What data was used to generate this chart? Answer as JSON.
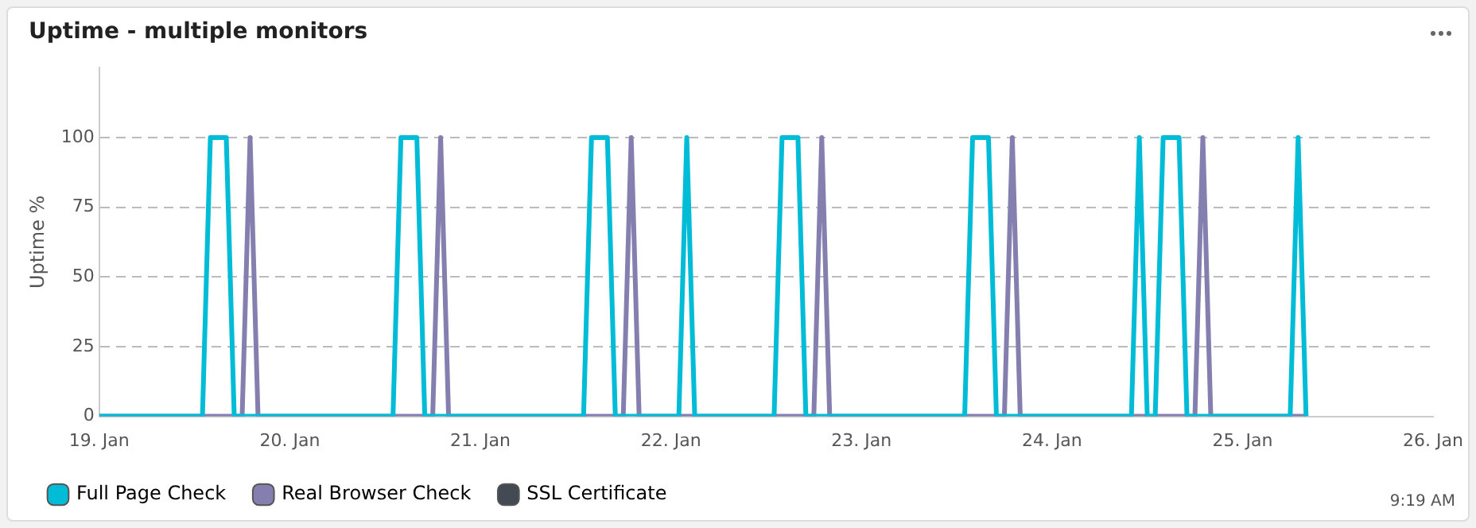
{
  "chart_data": {
    "type": "line",
    "title": "Uptime - multiple monitors",
    "ylabel": "Uptime %",
    "xlim": [
      "--01-19",
      "--01-26"
    ],
    "xticks": [
      {
        "value": "--01-19",
        "label": "19. Jan"
      },
      {
        "value": "--01-20",
        "label": "20. Jan"
      },
      {
        "value": "--01-21",
        "label": "21. Jan"
      },
      {
        "value": "--01-22",
        "label": "22. Jan"
      },
      {
        "value": "--01-23",
        "label": "23. Jan"
      },
      {
        "value": "--01-24",
        "label": "24. Jan"
      },
      {
        "value": "--01-25",
        "label": "25. Jan"
      },
      {
        "value": "--01-26",
        "label": "26. Jan"
      }
    ],
    "ylim": [
      0,
      125
    ],
    "yticks": [
      0,
      25,
      50,
      75,
      100
    ],
    "grid": "y",
    "legend": "bottom left",
    "marker": "none",
    "line_style": "solid",
    "annotations": [
      "9:19 AM"
    ],
    "series": [
      {
        "name": "Full Page Check",
        "color": "#00bcd6",
        "x": [
          "--01-19T00:00",
          "--01-19T13:00",
          "--01-19T14:00",
          "--01-19T16:00",
          "--01-19T17:00",
          "--01-20T13:00",
          "--01-20T14:00",
          "--01-20T16:00",
          "--01-20T17:00",
          "--01-21T13:00",
          "--01-21T14:00",
          "--01-21T16:00",
          "--01-21T17:00",
          "--01-22T01:00",
          "--01-22T02:00",
          "--01-22T03:00",
          "--01-22T13:00",
          "--01-22T14:00",
          "--01-22T16:00",
          "--01-22T17:00",
          "--01-23T13:00",
          "--01-23T14:00",
          "--01-23T16:00",
          "--01-23T17:00",
          "--01-24T10:00",
          "--01-24T11:00",
          "--01-24T12:00",
          "--01-24T13:00",
          "--01-24T14:00",
          "--01-24T16:00",
          "--01-24T17:00",
          "--01-25T06:00",
          "--01-25T07:00",
          "--01-25T08:00"
        ],
        "values": [
          0,
          0,
          100,
          100,
          0,
          0,
          100,
          100,
          0,
          0,
          100,
          100,
          0,
          0,
          100,
          0,
          0,
          100,
          100,
          0,
          0,
          100,
          100,
          0,
          0,
          100,
          0,
          0,
          100,
          100,
          0,
          0,
          100,
          0
        ]
      },
      {
        "name": "Real Browser Check",
        "color": "#857fb0",
        "x": [
          "--01-19T00:00",
          "--01-19T18:00",
          "--01-19T19:00",
          "--01-19T20:00",
          "--01-20T18:00",
          "--01-20T19:00",
          "--01-20T20:00",
          "--01-21T18:00",
          "--01-21T19:00",
          "--01-21T20:00",
          "--01-22T18:00",
          "--01-22T19:00",
          "--01-22T20:00",
          "--01-23T18:00",
          "--01-23T19:00",
          "--01-23T20:00",
          "--01-24T18:00",
          "--01-24T19:00",
          "--01-24T20:00",
          "--01-25T08:00"
        ],
        "values": [
          0,
          0,
          100,
          0,
          0,
          100,
          0,
          0,
          100,
          0,
          0,
          100,
          0,
          0,
          100,
          0,
          0,
          100,
          0,
          0
        ]
      },
      {
        "name": "SSL Certificate",
        "color": "#434a54"
      }
    ]
  }
}
